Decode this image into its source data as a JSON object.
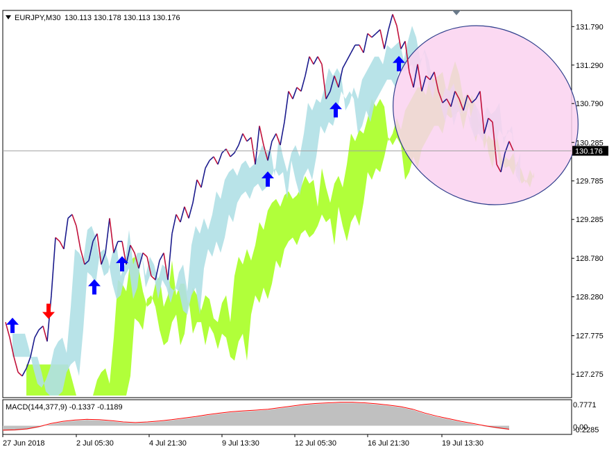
{
  "header": {
    "symbol_label": "EURJPY,M30",
    "ohlc": "130.113 130.178 130.113 130.176"
  },
  "price_label": "130.176",
  "sub_indicator": {
    "label": "MACD(144,377,9) -0.1337 -0.1189",
    "axis_labels": [
      "0.7771",
      "0.00",
      "-0.2285"
    ]
  },
  "chart_data": {
    "type": "line",
    "title": "",
    "instrument": "EURJPY",
    "timeframe": "M30",
    "y_ticks": [
      127.275,
      127.775,
      128.28,
      128.78,
      129.285,
      129.785,
      130.285,
      130.79,
      131.29,
      131.79
    ],
    "y_tick_labels": [
      "127.275",
      "127.775",
      "128.280",
      "128.780",
      "129.285",
      "129.785",
      "130.285",
      "130.790",
      "131.290",
      "131.790"
    ],
    "ylim": [
      126.97,
      132.0
    ],
    "x_tick_labels": [
      "27 Jun 2018",
      "2 Jul 05:30",
      "4 Jul 21:30",
      "9 Jul 13:30",
      "12 Jul 05:30",
      "16 Jul 21:30",
      "19 Jul 13:30"
    ],
    "current_price": 130.176,
    "colors": {
      "price_up": "#1a1a8c",
      "price_down": "#c0103a",
      "cloud_bullish": "#adff2f",
      "cloud_bearish": "#b0e0e6",
      "highlight_ellipse": "#fad2f0",
      "ellipse_border": "#2e3e8c",
      "buy_arrow": "#0000ff",
      "sell_arrow": "#ff0000",
      "macd_hist": "#c0c0c0",
      "macd_signal": "#ff0000"
    },
    "series": [
      {
        "name": "",
        "x": [
          0,
          6,
          12,
          18,
          24,
          30,
          36,
          42,
          48,
          54,
          60,
          66,
          72,
          78,
          84,
          90,
          96,
          102,
          108,
          114,
          120,
          126,
          132,
          138,
          144,
          150,
          156,
          162,
          168,
          174,
          180,
          186,
          192,
          198,
          204,
          210,
          216,
          222,
          228,
          234,
          240,
          246,
          252,
          258,
          264,
          270,
          276,
          282,
          288,
          294,
          300,
          306,
          312,
          318,
          324,
          330,
          336,
          342,
          348,
          354,
          360,
          366,
          372,
          378,
          384,
          390,
          396,
          402,
          408,
          414,
          420,
          426,
          432,
          438,
          444,
          450,
          456,
          462,
          468,
          474,
          480,
          486,
          492,
          498,
          504,
          510,
          516,
          522,
          528,
          534,
          540,
          546,
          552,
          558,
          564,
          570,
          576,
          582,
          588,
          594,
          600,
          606,
          612,
          618,
          624,
          630,
          636,
          642,
          648,
          654,
          660,
          666,
          672,
          678,
          684,
          690,
          696,
          702,
          708,
          714,
          720,
          726,
          732
        ],
        "values": [
          127.95,
          127.75,
          127.5,
          127.3,
          127.25,
          127.35,
          127.5,
          127.75,
          127.85,
          127.9,
          127.7,
          128.3,
          129.05,
          129.0,
          128.9,
          129.3,
          129.35,
          129.2,
          128.9,
          128.7,
          128.75,
          129.0,
          129.1,
          128.7,
          128.85,
          129.3,
          128.85,
          129.0,
          129.0,
          128.7,
          128.95,
          128.85,
          128.65,
          128.85,
          128.8,
          128.55,
          128.5,
          128.75,
          128.85,
          128.5,
          129.1,
          129.35,
          129.25,
          129.45,
          129.3,
          129.5,
          129.8,
          129.7,
          129.95,
          130.05,
          130.1,
          130.0,
          130.15,
          130.2,
          130.1,
          130.15,
          130.25,
          130.4,
          130.3,
          130.35,
          130.0,
          130.5,
          130.25,
          130.05,
          130.3,
          130.4,
          130.25,
          130.55,
          130.95,
          130.85,
          131.0,
          130.95,
          131.15,
          131.4,
          131.3,
          131.4,
          131.3,
          130.85,
          130.95,
          131.15,
          131.0,
          131.25,
          131.35,
          131.45,
          131.55,
          131.55,
          131.45,
          131.7,
          131.65,
          131.7,
          131.75,
          131.5,
          131.75,
          131.95,
          131.8,
          131.5,
          131.6,
          131.2,
          131.0,
          131.3,
          130.95,
          131.15,
          131.1,
          131.2,
          130.95,
          130.8,
          130.85,
          130.75,
          130.95,
          130.85,
          130.7,
          130.9,
          130.8,
          130.85,
          130.95,
          130.4,
          130.6,
          130.55,
          130.0,
          129.9,
          130.15,
          130.3,
          130.176
        ]
      }
    ],
    "buy_signals": [
      {
        "x": 10,
        "y": 127.9
      },
      {
        "x": 128,
        "y": 128.4
      },
      {
        "x": 168,
        "y": 128.7
      },
      {
        "x": 378,
        "y": 129.8
      },
      {
        "x": 476,
        "y": 130.7
      },
      {
        "x": 567,
        "y": 131.3
      }
    ],
    "sell_signals": [
      {
        "x": 62,
        "y": 128.1
      }
    ],
    "macd_hist": [
      -0.16,
      -0.15,
      -0.12,
      -0.05,
      0.05,
      0.12,
      0.16,
      0.18,
      0.17,
      0.14,
      0.1,
      0.08,
      0.1,
      0.13,
      0.17,
      0.22,
      0.27,
      0.33,
      0.38,
      0.42,
      0.45,
      0.47,
      0.5,
      0.55,
      0.6,
      0.65,
      0.68,
      0.7,
      0.72,
      0.72,
      0.7,
      0.67,
      0.63,
      0.58,
      0.5,
      0.38,
      0.28,
      0.2,
      0.12,
      0.05,
      -0.02,
      -0.08,
      -0.13
    ],
    "macd_ylim": [
      -0.2285,
      0.7771
    ]
  }
}
